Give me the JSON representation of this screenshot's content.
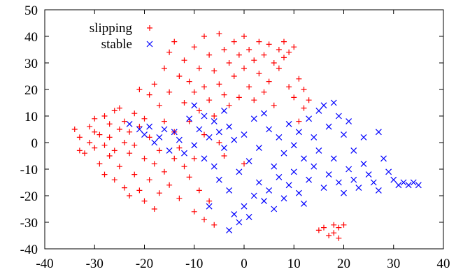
{
  "chart_data": {
    "type": "scatter",
    "title": "",
    "xlabel": "",
    "ylabel": "",
    "xlim": [
      -40,
      40
    ],
    "ylim": [
      -40,
      50
    ],
    "x_ticks": [
      -40,
      -30,
      -20,
      -10,
      0,
      10,
      20,
      30,
      40
    ],
    "y_ticks": [
      -40,
      -30,
      -20,
      -10,
      0,
      10,
      20,
      30,
      40,
      50
    ],
    "grid": false,
    "legend_position": "top-left",
    "series": [
      {
        "name": "slipping",
        "marker": "plus",
        "color": "#ff0000",
        "points": [
          [
            -34,
            5
          ],
          [
            -33,
            -3
          ],
          [
            -33,
            2
          ],
          [
            -32,
            -4
          ],
          [
            -31,
            6
          ],
          [
            -31,
            0
          ],
          [
            -30,
            4
          ],
          [
            -30,
            -2
          ],
          [
            -30,
            9
          ],
          [
            -29,
            -8
          ],
          [
            -29,
            3
          ],
          [
            -28,
            10
          ],
          [
            -28,
            -1
          ],
          [
            -28,
            -12
          ],
          [
            -27,
            7
          ],
          [
            -27,
            -5
          ],
          [
            -27,
            2
          ],
          [
            -26,
            12
          ],
          [
            -26,
            -3
          ],
          [
            -26,
            -14
          ],
          [
            -25,
            5
          ],
          [
            -25,
            13
          ],
          [
            -25,
            -9
          ],
          [
            -24,
            0
          ],
          [
            -24,
            -17
          ],
          [
            -24,
            8
          ],
          [
            -23,
            -4
          ],
          [
            -23,
            4
          ],
          [
            -23,
            -20
          ],
          [
            -22,
            11
          ],
          [
            -22,
            -12
          ],
          [
            -22,
            -1
          ],
          [
            -21,
            20
          ],
          [
            -21,
            6
          ],
          [
            -21,
            -18
          ],
          [
            -20,
            -6
          ],
          [
            -20,
            9
          ],
          [
            -20,
            -22
          ],
          [
            -19,
            2
          ],
          [
            -19,
            18
          ],
          [
            -19,
            -14
          ],
          [
            -18,
            22
          ],
          [
            -18,
            -8
          ],
          [
            -18,
            -25
          ],
          [
            -17,
            14
          ],
          [
            -17,
            -3
          ],
          [
            -17,
            -19
          ],
          [
            -16,
            28
          ],
          [
            -16,
            8
          ],
          [
            -16,
            -11
          ],
          [
            -15,
            34
          ],
          [
            -15,
            19
          ],
          [
            -15,
            -16
          ],
          [
            -14,
            38
          ],
          [
            -14,
            4
          ],
          [
            -14,
            -6
          ],
          [
            -13,
            25
          ],
          [
            -13,
            -2
          ],
          [
            -13,
            -21
          ],
          [
            -12,
            31
          ],
          [
            -12,
            15
          ],
          [
            -12,
            -9
          ],
          [
            -11,
            23
          ],
          [
            -11,
            8
          ],
          [
            -11,
            -13
          ],
          [
            -10,
            36
          ],
          [
            -10,
            19
          ],
          [
            -10,
            -6
          ],
          [
            -10,
            -26
          ],
          [
            -9,
            28
          ],
          [
            -9,
            12
          ],
          [
            -9,
            -18
          ],
          [
            -8,
            40
          ],
          [
            -8,
            21
          ],
          [
            -8,
            3
          ],
          [
            -8,
            -29
          ],
          [
            -7,
            33
          ],
          [
            -7,
            16
          ],
          [
            -7,
            -22
          ],
          [
            -6,
            27
          ],
          [
            -6,
            10
          ],
          [
            -6,
            -31
          ],
          [
            -5,
            41
          ],
          [
            -5,
            22
          ],
          [
            -5,
            0
          ],
          [
            -4,
            35
          ],
          [
            -4,
            18
          ],
          [
            -4,
            -5
          ],
          [
            -3,
            30
          ],
          [
            -3,
            14
          ],
          [
            -2,
            38
          ],
          [
            -2,
            25
          ],
          [
            -1,
            33
          ],
          [
            -1,
            17
          ],
          [
            0,
            40
          ],
          [
            0,
            28
          ],
          [
            0,
            -8
          ],
          [
            1,
            35
          ],
          [
            1,
            21
          ],
          [
            2,
            31
          ],
          [
            2,
            16
          ],
          [
            3,
            38
          ],
          [
            3,
            26
          ],
          [
            4,
            33
          ],
          [
            4,
            19
          ],
          [
            5,
            37
          ],
          [
            5,
            23
          ],
          [
            6,
            30
          ],
          [
            6,
            14
          ],
          [
            7,
            35
          ],
          [
            7,
            28
          ],
          [
            8,
            38
          ],
          [
            8,
            32
          ],
          [
            9,
            34
          ],
          [
            9,
            21
          ],
          [
            10,
            36
          ],
          [
            10,
            17
          ],
          [
            11,
            24
          ],
          [
            11,
            8
          ],
          [
            12,
            20
          ],
          [
            12,
            13
          ],
          [
            13,
            16
          ],
          [
            15,
            -33
          ],
          [
            16,
            -32
          ],
          [
            17,
            -35
          ],
          [
            18,
            -34
          ],
          [
            18,
            -31
          ],
          [
            19,
            -32
          ],
          [
            19,
            -36
          ],
          [
            20,
            -31
          ]
        ]
      },
      {
        "name": "stable",
        "marker": "cross",
        "color": "#0000ff",
        "points": [
          [
            -23,
            7
          ],
          [
            -21,
            5
          ],
          [
            -20,
            3
          ],
          [
            -19,
            6
          ],
          [
            -18,
            0
          ],
          [
            -17,
            2
          ],
          [
            -16,
            5
          ],
          [
            -15,
            -3
          ],
          [
            -14,
            4
          ],
          [
            -13,
            1
          ],
          [
            -12,
            -4
          ],
          [
            -11,
            9
          ],
          [
            -10,
            -1
          ],
          [
            -10,
            14
          ],
          [
            -9,
            5
          ],
          [
            -8,
            -6
          ],
          [
            -8,
            10
          ],
          [
            -7,
            2
          ],
          [
            -7,
            -24
          ],
          [
            -6,
            -9
          ],
          [
            -6,
            8
          ],
          [
            -5,
            4
          ],
          [
            -5,
            -14
          ],
          [
            -4,
            -2
          ],
          [
            -4,
            12
          ],
          [
            -3,
            6
          ],
          [
            -3,
            -18
          ],
          [
            -3,
            -33
          ],
          [
            -2,
            -27
          ],
          [
            -2,
            1
          ],
          [
            -1,
            -30
          ],
          [
            -1,
            -11
          ],
          [
            0,
            -24
          ],
          [
            0,
            3
          ],
          [
            1,
            -28
          ],
          [
            1,
            -7
          ],
          [
            2,
            -20
          ],
          [
            2,
            9
          ],
          [
            3,
            -15
          ],
          [
            3,
            -2
          ],
          [
            4,
            -22
          ],
          [
            4,
            11
          ],
          [
            5,
            -18
          ],
          [
            5,
            5
          ],
          [
            6,
            -9
          ],
          [
            6,
            -25
          ],
          [
            7,
            2
          ],
          [
            7,
            -13
          ],
          [
            8,
            -4
          ],
          [
            8,
            -21
          ],
          [
            9,
            7
          ],
          [
            9,
            -16
          ],
          [
            10,
            -1
          ],
          [
            10,
            -11
          ],
          [
            11,
            -19
          ],
          [
            11,
            4
          ],
          [
            12,
            -6
          ],
          [
            12,
            -23
          ],
          [
            13,
            9
          ],
          [
            13,
            -14
          ],
          [
            14,
            2
          ],
          [
            14,
            -9
          ],
          [
            15,
            12
          ],
          [
            15,
            -3
          ],
          [
            16,
            14
          ],
          [
            16,
            -17
          ],
          [
            17,
            6
          ],
          [
            17,
            -12
          ],
          [
            18,
            15
          ],
          [
            18,
            -6
          ],
          [
            19,
            10
          ],
          [
            19,
            -15
          ],
          [
            20,
            3
          ],
          [
            20,
            -19
          ],
          [
            21,
            -10
          ],
          [
            21,
            8
          ],
          [
            22,
            -14
          ],
          [
            22,
            -3
          ],
          [
            23,
            -17
          ],
          [
            24,
            -8
          ],
          [
            24,
            2
          ],
          [
            25,
            -12
          ],
          [
            26,
            -15
          ],
          [
            27,
            4
          ],
          [
            27,
            -18
          ],
          [
            28,
            -6
          ],
          [
            29,
            -11
          ],
          [
            30,
            -14
          ],
          [
            31,
            -16
          ],
          [
            32,
            -15
          ],
          [
            33,
            -16
          ],
          [
            34,
            -15
          ],
          [
            35,
            -16
          ]
        ]
      }
    ]
  }
}
